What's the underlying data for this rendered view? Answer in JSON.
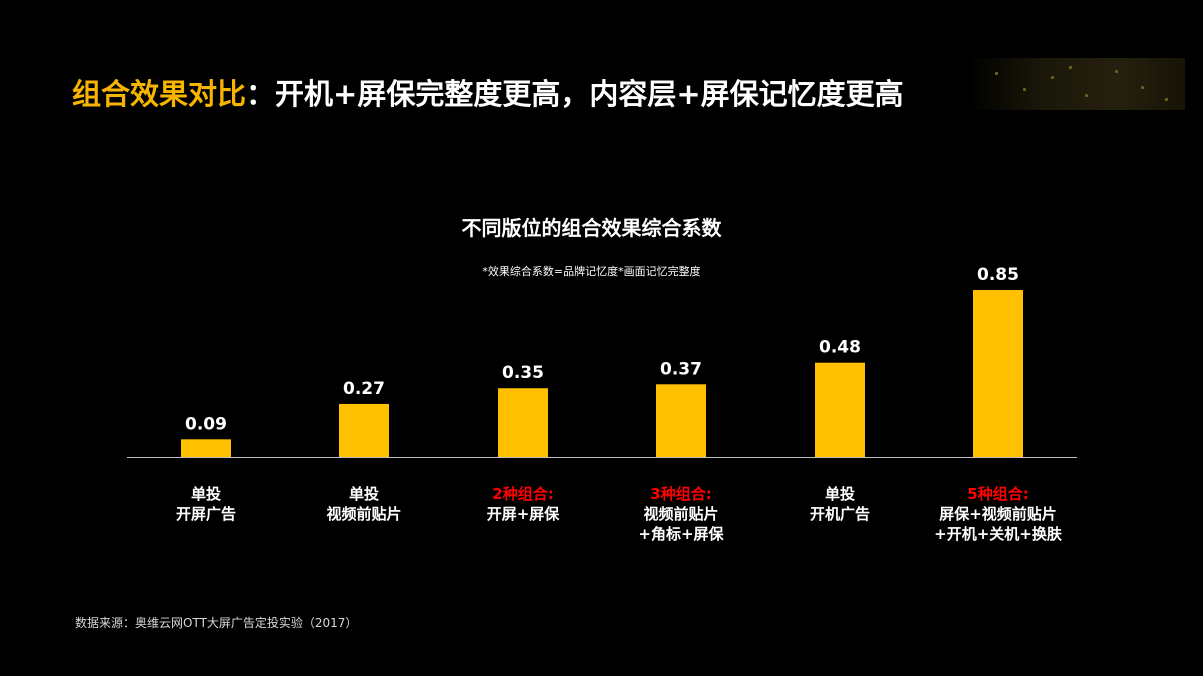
{
  "slide": {
    "title_accent": "组合效果对比",
    "title_rest": "：开机+屏保完整度更高，内容层+屏保记忆度更高"
  },
  "source_note": "数据来源：奥维云网OTT大屏广告定投实验（2017）",
  "colors": {
    "bar": "#FFC000",
    "highlight_label": "#FF0000",
    "normal_label": "#FFFFFF",
    "title_accent": "#F7B500"
  },
  "chart_data": {
    "type": "bar",
    "title": "不同版位的组合效果综合系数",
    "note": "*效果综合系数=品牌记忆度*画面记忆完整度",
    "categories": [
      {
        "lines": [
          "单投",
          "开屏广告"
        ],
        "highlight": false
      },
      {
        "lines": [
          "单投",
          "视频前贴片"
        ],
        "highlight": false
      },
      {
        "lines": [
          "2种组合:",
          "开屏+屏保"
        ],
        "highlight": true
      },
      {
        "lines": [
          "3种组合:",
          "视频前贴片",
          "+角标+屏保"
        ],
        "highlight": true
      },
      {
        "lines": [
          "单投",
          "开机广告"
        ],
        "highlight": false
      },
      {
        "lines": [
          "5种组合:",
          "屏保+视频前贴片",
          "+开机+关机+换肤"
        ],
        "highlight": true
      }
    ],
    "values": [
      0.09,
      0.27,
      0.35,
      0.37,
      0.48,
      0.85
    ],
    "value_labels": [
      "0.09",
      "0.27",
      "0.35",
      "0.37",
      "0.48",
      "0.85"
    ],
    "ylim": [
      0,
      0.85
    ],
    "grid": false,
    "legend": "none"
  }
}
